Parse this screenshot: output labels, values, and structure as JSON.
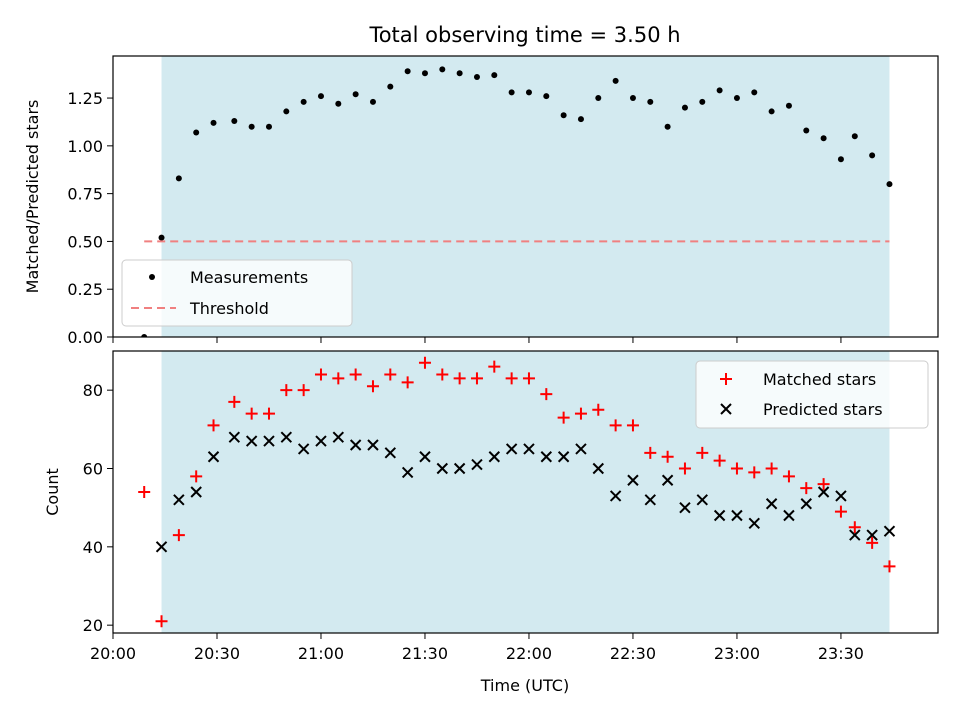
{
  "chart_data": [
    {
      "type": "scatter",
      "title": "Total observing time = 3.50 h",
      "xlabel": "",
      "ylabel": "Matched/Predicted stars",
      "xlim": [
        "20:00",
        "23:58"
      ],
      "ylim": [
        0,
        1.47
      ],
      "yticks": [
        0.0,
        0.25,
        0.5,
        0.75,
        1.0,
        1.25
      ],
      "ytick_labels": [
        "0.00",
        "0.25",
        "0.50",
        "0.75",
        "1.00",
        "1.25"
      ],
      "shaded_span": [
        "20:14",
        "23:44"
      ],
      "shade_color": "#d3eaf0",
      "threshold": 0.5,
      "legend": {
        "placement": "lower left",
        "entries": [
          "Measurements",
          "Threshold"
        ]
      },
      "series": [
        {
          "name": "Measurements",
          "marker": "dot",
          "color": "#000000",
          "x": [
            "20:09",
            "20:14",
            "20:19",
            "20:24",
            "20:29",
            "20:35",
            "20:40",
            "20:45",
            "20:50",
            "20:55",
            "21:00",
            "21:05",
            "21:10",
            "21:15",
            "21:20",
            "21:25",
            "21:30",
            "21:35",
            "21:40",
            "21:45",
            "21:50",
            "21:55",
            "22:00",
            "22:05",
            "22:10",
            "22:15",
            "22:20",
            "22:25",
            "22:30",
            "22:35",
            "22:40",
            "22:45",
            "22:50",
            "22:55",
            "23:00",
            "23:05",
            "23:10",
            "23:15",
            "23:20",
            "23:25",
            "23:30",
            "23:34",
            "23:39",
            "23:44"
          ],
          "values": [
            0.0,
            0.52,
            0.83,
            1.07,
            1.12,
            1.13,
            1.1,
            1.1,
            1.18,
            1.23,
            1.26,
            1.22,
            1.27,
            1.23,
            1.31,
            1.39,
            1.38,
            1.4,
            1.38,
            1.36,
            1.37,
            1.28,
            1.28,
            1.26,
            1.16,
            1.14,
            1.25,
            1.34,
            1.25,
            1.23,
            1.1,
            1.2,
            1.23,
            1.29,
            1.25,
            1.28,
            1.18,
            1.21,
            1.08,
            1.04,
            0.93,
            1.05,
            0.95,
            0.8
          ]
        },
        {
          "name": "Threshold",
          "marker": "dashed-line",
          "color": "#f08080",
          "x": [
            "20:09",
            "23:44"
          ],
          "values": [
            0.5,
            0.5
          ]
        }
      ]
    },
    {
      "type": "scatter",
      "title": "",
      "xlabel": "Time (UTC)",
      "ylabel": "Count",
      "xlim": [
        "20:00",
        "23:58"
      ],
      "ylim": [
        18,
        90
      ],
      "yticks": [
        20,
        40,
        60,
        80
      ],
      "ytick_labels": [
        "20",
        "40",
        "60",
        "80"
      ],
      "xticks": [
        "20:00",
        "20:30",
        "21:00",
        "21:30",
        "22:00",
        "22:30",
        "23:00",
        "23:30"
      ],
      "shaded_span": [
        "20:14",
        "23:44"
      ],
      "shade_color": "#d3eaf0",
      "legend": {
        "placement": "upper right",
        "entries": [
          "Matched stars",
          "Predicted stars"
        ]
      },
      "series": [
        {
          "name": "Matched stars",
          "marker": "plus",
          "color": "#ff0000",
          "x": [
            "20:09",
            "20:14",
            "20:19",
            "20:24",
            "20:29",
            "20:35",
            "20:40",
            "20:45",
            "20:50",
            "20:55",
            "21:00",
            "21:05",
            "21:10",
            "21:15",
            "21:20",
            "21:25",
            "21:30",
            "21:35",
            "21:40",
            "21:45",
            "21:50",
            "21:55",
            "22:00",
            "22:05",
            "22:10",
            "22:15",
            "22:20",
            "22:25",
            "22:30",
            "22:35",
            "22:40",
            "22:45",
            "22:50",
            "22:55",
            "23:00",
            "23:05",
            "23:10",
            "23:15",
            "23:20",
            "23:25",
            "23:30",
            "23:34",
            "23:39",
            "23:44"
          ],
          "values": [
            54,
            21,
            43,
            58,
            71,
            77,
            74,
            74,
            80,
            80,
            84,
            83,
            84,
            81,
            84,
            82,
            87,
            84,
            83,
            83,
            86,
            83,
            83,
            79,
            73,
            74,
            75,
            71,
            71,
            64,
            63,
            60,
            64,
            62,
            60,
            59,
            60,
            58,
            55,
            56,
            49,
            45,
            41,
            35
          ]
        },
        {
          "name": "Predicted stars",
          "marker": "x",
          "color": "#000000",
          "x": [
            "20:14",
            "20:19",
            "20:24",
            "20:29",
            "20:35",
            "20:40",
            "20:45",
            "20:50",
            "20:55",
            "21:00",
            "21:05",
            "21:10",
            "21:15",
            "21:20",
            "21:25",
            "21:30",
            "21:35",
            "21:40",
            "21:45",
            "21:50",
            "21:55",
            "22:00",
            "22:05",
            "22:10",
            "22:15",
            "22:20",
            "22:25",
            "22:30",
            "22:35",
            "22:40",
            "22:45",
            "22:50",
            "22:55",
            "23:00",
            "23:05",
            "23:10",
            "23:15",
            "23:20",
            "23:25",
            "23:30",
            "23:34",
            "23:39",
            "23:44"
          ],
          "values": [
            40,
            52,
            54,
            63,
            68,
            67,
            67,
            68,
            65,
            67,
            68,
            66,
            66,
            64,
            59,
            63,
            60,
            60,
            61,
            63,
            65,
            65,
            63,
            63,
            65,
            60,
            53,
            57,
            52,
            57,
            50,
            52,
            48,
            48,
            46,
            51,
            48,
            51,
            54,
            53,
            43,
            43,
            44
          ]
        }
      ]
    }
  ]
}
